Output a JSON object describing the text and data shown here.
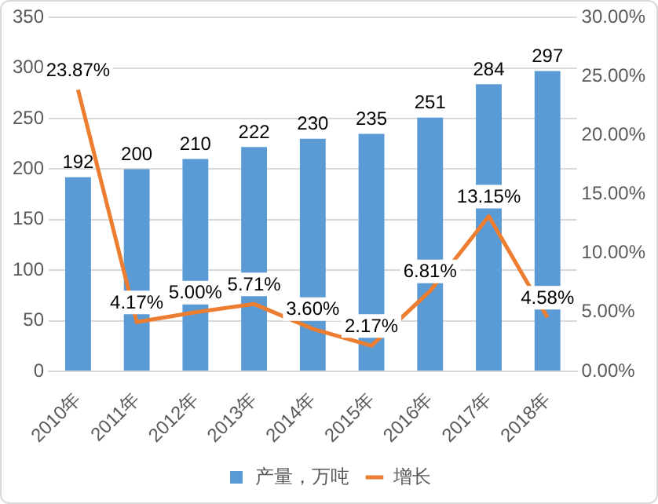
{
  "chart_data": {
    "type": "bar",
    "categories": [
      "2010年",
      "2011年",
      "2012年",
      "2013年",
      "2014年",
      "2015年",
      "2016年",
      "2017年",
      "2018年"
    ],
    "series": [
      {
        "name": "产量，万吨",
        "color": "#5b9bd5",
        "values": [
          192,
          200,
          210,
          222,
          230,
          235,
          251,
          284,
          297
        ],
        "value_labels": [
          "192",
          "200",
          "210",
          "222",
          "230",
          "235",
          "251",
          "284",
          "297"
        ]
      },
      {
        "name": "增长",
        "type": "line",
        "axis": "y2",
        "color": "#ed7d31",
        "values": [
          23.87,
          4.17,
          5.0,
          5.71,
          3.6,
          2.17,
          6.81,
          13.15,
          4.58
        ],
        "value_labels": [
          "23.87%",
          "4.17%",
          "5.00%",
          "5.71%",
          "3.60%",
          "2.17%",
          "6.81%",
          "13.15%",
          "4.58%"
        ]
      }
    ],
    "ylim": [
      0,
      350
    ],
    "yticks": [
      0,
      50,
      100,
      150,
      200,
      250,
      300,
      350
    ],
    "y2lim": [
      0,
      30
    ],
    "y2ticks": [
      {
        "value": 0,
        "label": "0.00%"
      },
      {
        "value": 5,
        "label": "5.00%"
      },
      {
        "value": 10,
        "label": "10.00%"
      },
      {
        "value": 15,
        "label": "15.00%"
      },
      {
        "value": 20,
        "label": "20.00%"
      },
      {
        "value": 25,
        "label": "25.00%"
      },
      {
        "value": 30,
        "label": "30.00%"
      }
    ],
    "grid": "y",
    "legend": "bottom",
    "marker": "none",
    "line_style": "solid"
  }
}
